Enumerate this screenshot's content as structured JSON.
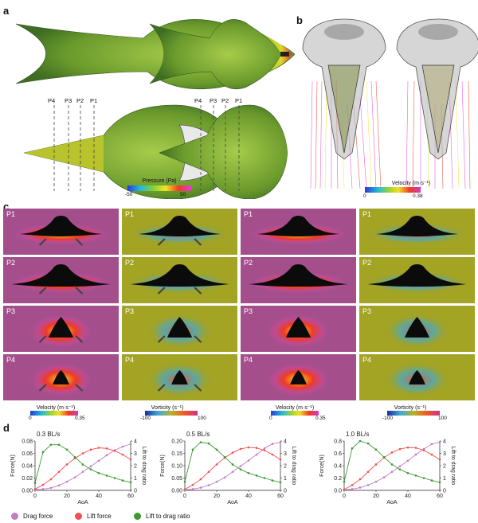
{
  "panels": {
    "a": "a",
    "b": "b",
    "c": "c",
    "d": "d"
  },
  "panel_a": {
    "section_labels": [
      "P4",
      "P3",
      "P2",
      "P1"
    ],
    "colorbar": {
      "title": "Pressure (Pa)",
      "min": "-50",
      "max": "50"
    }
  },
  "panel_b": {
    "colorbar": {
      "title": "Velocity (m·s⁻¹)",
      "min": "0",
      "max": "0.38"
    }
  },
  "panel_c": {
    "rows": [
      "P1",
      "P2",
      "P3",
      "P4"
    ],
    "colorbars": [
      {
        "title": "Velocity (m·s⁻¹)",
        "min": "0",
        "max": "0.35"
      },
      {
        "title": "Vorticity (s⁻¹)",
        "min": "-100",
        "max": "100"
      },
      {
        "title": "Velocity (m·s⁻¹)",
        "min": "0",
        "max": "0.35"
      },
      {
        "title": "Vorticity (s⁻¹)",
        "min": "-100",
        "max": "100"
      }
    ]
  },
  "colors": {
    "drag": "#c27cc4",
    "lift": "#f05050",
    "ratio": "#3a9a30",
    "magenta_bg": "#a44f8c",
    "olive_bg": "#a3a324"
  },
  "legend": {
    "drag": "Drag force",
    "lift": "Lift force",
    "ratio": "Lift to drag ratio"
  },
  "chart_data": [
    {
      "type": "line",
      "title": "0.3 BL/s",
      "xlabel": "AoA",
      "ylabel": "Force(N)",
      "y2label": "Lift to drag ratio",
      "x": [
        0,
        5,
        10,
        15,
        20,
        25,
        30,
        35,
        40,
        45,
        50,
        55,
        60
      ],
      "xlim": [
        0,
        60
      ],
      "ylim": [
        0,
        0.08
      ],
      "y2lim": [
        0,
        4
      ],
      "xticks": [
        "0",
        "20",
        "40",
        "60"
      ],
      "yticks": [
        "0.00",
        "0.02",
        "0.04",
        "0.06",
        "0.08"
      ],
      "y2ticks": [
        "0",
        "1",
        "2",
        "3",
        "4"
      ],
      "series": [
        {
          "name": "Drag force",
          "axis": "left",
          "values": [
            0.001,
            0.002,
            0.004,
            0.008,
            0.014,
            0.021,
            0.03,
            0.039,
            0.048,
            0.057,
            0.065,
            0.071,
            0.075
          ]
        },
        {
          "name": "Lift force",
          "axis": "left",
          "values": [
            0.002,
            0.009,
            0.018,
            0.03,
            0.042,
            0.052,
            0.06,
            0.066,
            0.069,
            0.068,
            0.064,
            0.058,
            0.05
          ]
        },
        {
          "name": "Lift to drag ratio",
          "axis": "right",
          "values": [
            0.6,
            3.1,
            3.7,
            3.7,
            3.3,
            2.7,
            2.1,
            1.7,
            1.4,
            1.2,
            1.0,
            0.8,
            0.65
          ]
        }
      ]
    },
    {
      "type": "line",
      "title": "0.5 BL/s",
      "xlabel": "AoA",
      "ylabel": "Force(N)",
      "y2label": "Lift to drag ratio",
      "x": [
        0,
        5,
        10,
        15,
        20,
        25,
        30,
        35,
        40,
        45,
        50,
        55,
        60
      ],
      "xlim": [
        0,
        60
      ],
      "ylim": [
        0,
        0.2
      ],
      "y2lim": [
        0,
        4
      ],
      "xticks": [
        "0",
        "20",
        "40",
        "60"
      ],
      "yticks": [
        "0.00",
        "0.05",
        "0.10",
        "0.15",
        "0.20"
      ],
      "y2ticks": [
        "0",
        "1",
        "2",
        "3",
        "4"
      ],
      "series": [
        {
          "name": "Drag force",
          "axis": "left",
          "values": [
            0.002,
            0.005,
            0.011,
            0.021,
            0.035,
            0.052,
            0.075,
            0.098,
            0.121,
            0.145,
            0.17,
            0.188,
            0.195
          ]
        },
        {
          "name": "Lift force",
          "axis": "left",
          "values": [
            0.004,
            0.022,
            0.045,
            0.075,
            0.105,
            0.132,
            0.153,
            0.168,
            0.174,
            0.172,
            0.162,
            0.145,
            0.125
          ]
        },
        {
          "name": "Lift to drag ratio",
          "axis": "right",
          "values": [
            0.7,
            3.3,
            3.9,
            3.8,
            3.3,
            2.7,
            2.1,
            1.7,
            1.4,
            1.2,
            1.0,
            0.8,
            0.65
          ]
        }
      ]
    },
    {
      "type": "line",
      "title": "1.0 BL/s",
      "xlabel": "AoA",
      "ylabel": "Force(N)",
      "y2label": "Lift to drag ratio",
      "x": [
        0,
        5,
        10,
        15,
        20,
        25,
        30,
        35,
        40,
        45,
        50,
        55,
        60
      ],
      "xlim": [
        0,
        60
      ],
      "ylim": [
        0,
        0.8
      ],
      "y2lim": [
        0,
        4
      ],
      "xticks": [
        "0",
        "20",
        "40",
        "60"
      ],
      "yticks": [
        "0.0",
        "0.2",
        "0.4",
        "0.6",
        "0.8"
      ],
      "y2ticks": [
        "0",
        "1",
        "2",
        "3",
        "4"
      ],
      "series": [
        {
          "name": "Drag force",
          "axis": "left",
          "values": [
            0.008,
            0.02,
            0.045,
            0.085,
            0.14,
            0.21,
            0.3,
            0.39,
            0.48,
            0.58,
            0.67,
            0.75,
            0.78
          ]
        },
        {
          "name": "Lift force",
          "axis": "left",
          "values": [
            0.015,
            0.085,
            0.18,
            0.3,
            0.42,
            0.53,
            0.615,
            0.67,
            0.695,
            0.69,
            0.65,
            0.58,
            0.5
          ]
        },
        {
          "name": "Lift to drag ratio",
          "axis": "right",
          "values": [
            0.7,
            3.4,
            4.0,
            3.8,
            3.3,
            2.7,
            2.1,
            1.7,
            1.4,
            1.2,
            1.0,
            0.8,
            0.65
          ]
        }
      ]
    }
  ]
}
